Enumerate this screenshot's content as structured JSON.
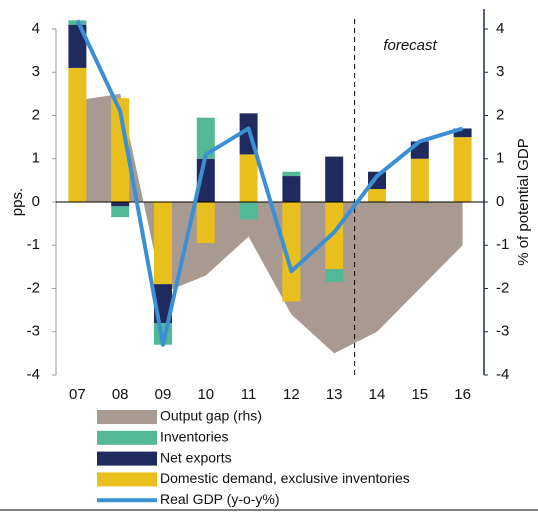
{
  "chart_data": {
    "type": "combo",
    "categories": [
      "07",
      "08",
      "09",
      "10",
      "11",
      "12",
      "13",
      "14",
      "15",
      "16"
    ],
    "series": [
      {
        "name": "Output gap (rhs)",
        "type": "area",
        "axis": "y2",
        "color": "#a89a91",
        "values": [
          2.35,
          2.5,
          -2.1,
          -1.7,
          -0.8,
          -2.6,
          -3.5,
          -3.0,
          -2.0,
          -1.0
        ]
      },
      {
        "name": "Inventories",
        "type": "bar",
        "color": "#52b896",
        "values": [
          0.1,
          -0.25,
          -0.5,
          0.95,
          -0.4,
          0.1,
          -0.3,
          0,
          0,
          0
        ]
      },
      {
        "name": "Net exports",
        "type": "bar",
        "color": "#1f2a5e",
        "values": [
          1.0,
          -0.1,
          -0.9,
          1.0,
          0.95,
          0.6,
          1.05,
          0.4,
          0.4,
          0.2
        ]
      },
      {
        "name": "Domestic demand, exclusive inventories",
        "type": "bar",
        "color": "#e8bf1c",
        "values": [
          3.1,
          2.4,
          -1.9,
          -0.95,
          1.1,
          -2.3,
          -1.55,
          0.3,
          1.0,
          1.5
        ]
      },
      {
        "name": "Real GDP (y-o-y%)",
        "type": "line",
        "color": "#3d8fd4",
        "values": [
          4.2,
          2.1,
          -3.3,
          1.1,
          1.7,
          -1.6,
          -0.7,
          0.6,
          1.4,
          1.7
        ]
      }
    ],
    "ylabel": "pps.",
    "y2label": "% of potential GDP",
    "ylim": [
      -4,
      4
    ],
    "yticks": [
      -4,
      -3,
      -2,
      -1,
      0,
      1,
      2,
      3,
      4
    ],
    "y2lim": [
      -4,
      4
    ],
    "y2ticks": [
      -4,
      -3,
      -2,
      -1,
      0,
      1,
      2,
      3,
      4
    ],
    "annotation": "forecast"
  }
}
